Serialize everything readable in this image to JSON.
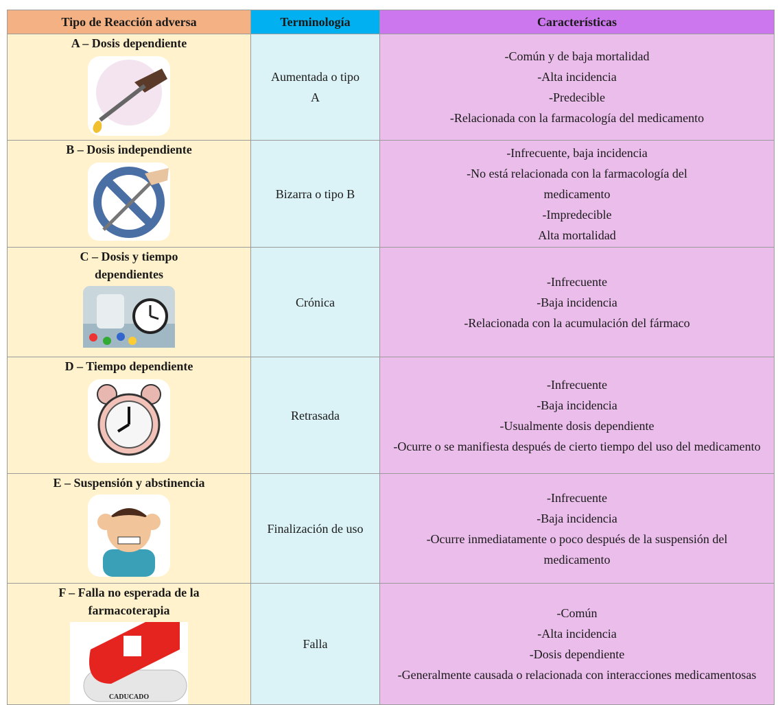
{
  "table": {
    "header": [
      "Tipo de Reacción adversa",
      "Terminología",
      "Características"
    ],
    "rows": [
      [
        "A – Dosis dependiente",
        "Aumentada o tipo A",
        [
          "-Común y de baja mortalidad",
          "-Alta incidencia",
          "-Predecible",
          "-Relacionada con la farmacología del medicamento"
        ]
      ],
      [
        "B – Dosis independiente",
        "Bizarra o tipo B",
        [
          "-Infrecuente, baja incidencia",
          "-No está relacionada con la farmacología del medicamento",
          "-Impredecible",
          "Alta mortalidad"
        ]
      ],
      [
        "C – Dosis y tiempo dependientes",
        "Crónica",
        [
          "-Infrecuente",
          "-Baja incidencia",
          "-Relacionada con la acumulación del fármaco"
        ]
      ],
      [
        "D – Tiempo dependiente",
        "Retrasada",
        [
          "-Infrecuente",
          "-Baja incidencia",
          "-Usualmente dosis dependiente",
          "-Ocurre o se manifiesta después de cierto tiempo del uso del medicamento"
        ]
      ],
      [
        "E – Suspensión y abstinencia",
        "Finalización de uso",
        [
          "-Infrecuente",
          "-Baja incidencia",
          "-Ocurre inmediatamente o poco después de la suspensión del medicamento"
        ]
      ],
      [
        "F – Falla no esperada de la farmacoterapia",
        "Falla",
        [
          "-Común",
          "-Alta incidencia",
          "-Dosis dependiente",
          "-Generalmente causada o relacionada con interacciones medicamentosas"
        ]
      ]
    ],
    "image_caption": "CADUCADO"
  }
}
